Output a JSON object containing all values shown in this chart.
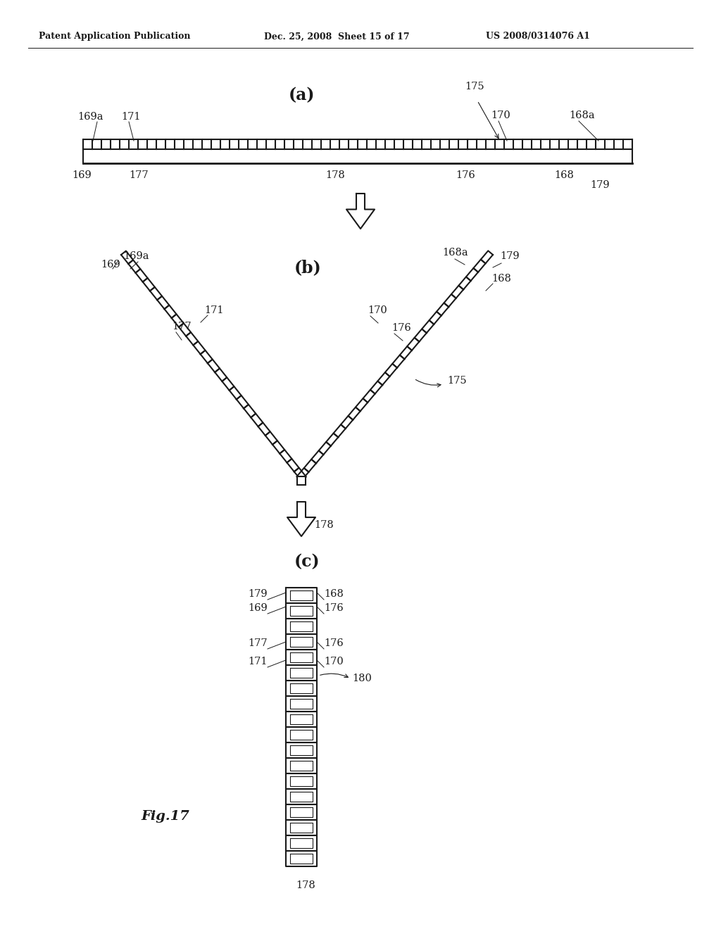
{
  "header_left": "Patent Application Publication",
  "header_mid": "Dec. 25, 2008  Sheet 15 of 17",
  "header_right": "US 2008/0314076 A1",
  "fig_label": "Fig.17",
  "bg_color": "#ffffff",
  "line_color": "#1a1a1a",
  "section_a": "(a)",
  "section_b": "(b)",
  "section_c": "(c)"
}
